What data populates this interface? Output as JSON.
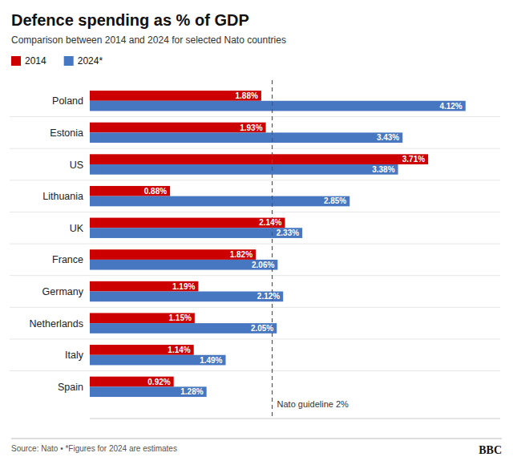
{
  "chart_data": {
    "type": "bar",
    "orientation": "horizontal",
    "title": "Defence spending as % of GDP",
    "subtitle": "Comparison between 2014 and 2024 for selected Nato countries",
    "categories": [
      "Spain",
      "Italy",
      "Netherlands",
      "Germany",
      "France",
      "UK",
      "Lithuania",
      "US",
      "Estonia",
      "Poland"
    ],
    "series": [
      {
        "name": "2014",
        "color": "#cc0000",
        "values": [
          0.92,
          1.14,
          1.15,
          1.19,
          1.82,
          2.14,
          0.88,
          3.71,
          1.93,
          1.88
        ],
        "value_labels": [
          "0.92%",
          "1.14%",
          "1.15%",
          "1.19%",
          "1.82%",
          "2.14%",
          "0.88%",
          "3.71%",
          "1.93%",
          "1.88%"
        ]
      },
      {
        "name": "2024*",
        "color": "#4777c0",
        "values": [
          1.28,
          1.49,
          2.05,
          2.12,
          2.06,
          2.33,
          2.85,
          3.38,
          3.43,
          4.12
        ],
        "value_labels": [
          "1.28%",
          "1.49%",
          "2.05%",
          "2.12%",
          "2.06%",
          "2.33%",
          "2.85%",
          "3.38%",
          "3.43%",
          "4.12%"
        ]
      }
    ],
    "xlim": [
      0,
      4.5
    ],
    "annotations": [
      {
        "text": "Nato guideline 2%",
        "x": 2.0
      }
    ],
    "source": "Source: Nato • *Figures for 2024 are estimates",
    "credit": "BBC",
    "legend": "top-left",
    "data_labels": true,
    "tick_labels": "y"
  }
}
